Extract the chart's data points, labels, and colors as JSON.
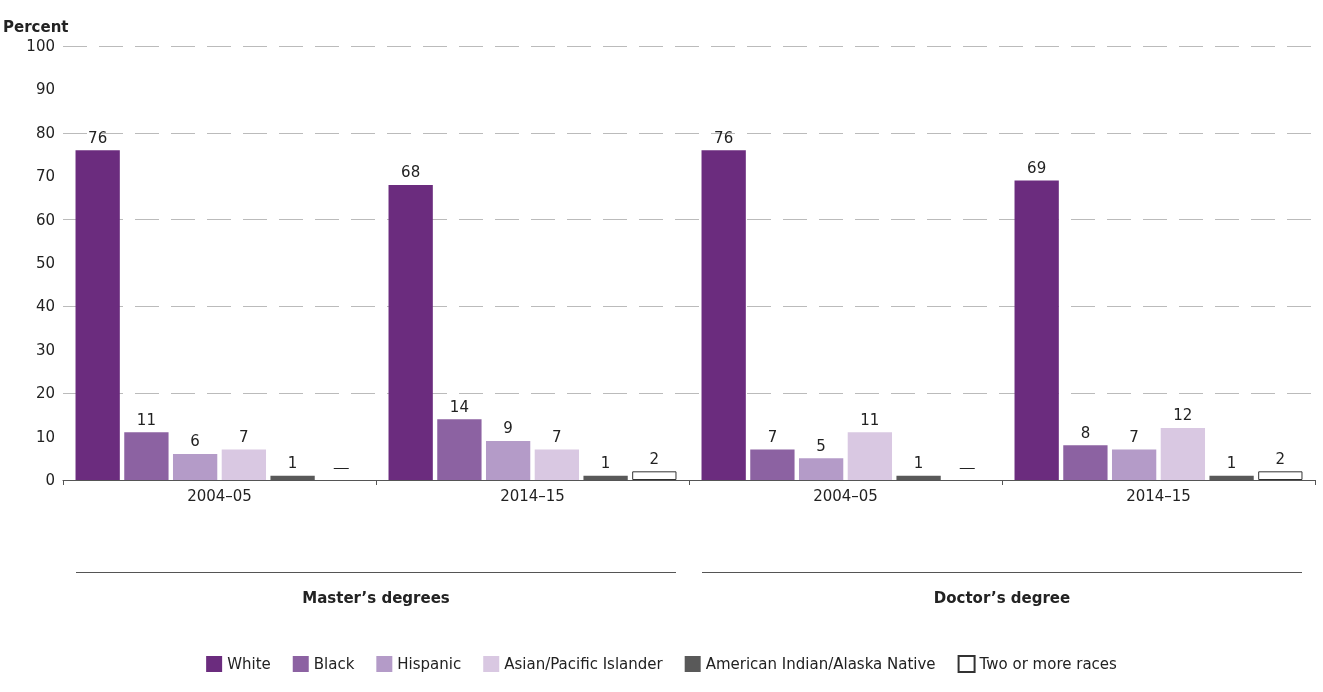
{
  "chart_data": {
    "type": "bar",
    "ylabel": "Percent",
    "categories": [
      "2004–05",
      "2014–15",
      "2004–05",
      "2014–15"
    ],
    "series": [
      {
        "name": "White",
        "color": "#6b2c7e",
        "values": [
          76,
          68,
          76,
          69
        ],
        "value_labels": [
          "76",
          "68",
          "76",
          "69"
        ]
      },
      {
        "name": "Black",
        "color": "#8c62a2",
        "values": [
          11,
          14,
          7,
          8
        ],
        "value_labels": [
          "11",
          "14",
          "7",
          "8"
        ]
      },
      {
        "name": "Hispanic",
        "color": "#b49bc8",
        "values": [
          6,
          9,
          5,
          7
        ],
        "value_labels": [
          "6",
          "9",
          "5",
          "7"
        ]
      },
      {
        "name": "Asian/Pacific Islander",
        "color": "#d9c8e2",
        "values": [
          7,
          7,
          11,
          12
        ],
        "value_labels": [
          "7",
          "7",
          "11",
          "12"
        ]
      },
      {
        "name": "American Indian/Alaska Native",
        "color": "#595959",
        "values": [
          1,
          1,
          1,
          1
        ],
        "value_labels": [
          "1",
          "1",
          "1",
          "1"
        ]
      },
      {
        "name": "Two or more races",
        "color": "#ffffff",
        "values": [
          null,
          2,
          null,
          2
        ],
        "value_labels": [
          "—",
          "2",
          "—",
          "2"
        ]
      }
    ],
    "annotations": [
      "Master’s degrees",
      "Doctor’s degree"
    ],
    "ylim": [
      0,
      100
    ],
    "yticks": [
      0,
      10,
      20,
      30,
      40,
      50,
      60,
      70,
      80,
      90,
      100
    ],
    "grid": "y",
    "legend": "bottom"
  }
}
